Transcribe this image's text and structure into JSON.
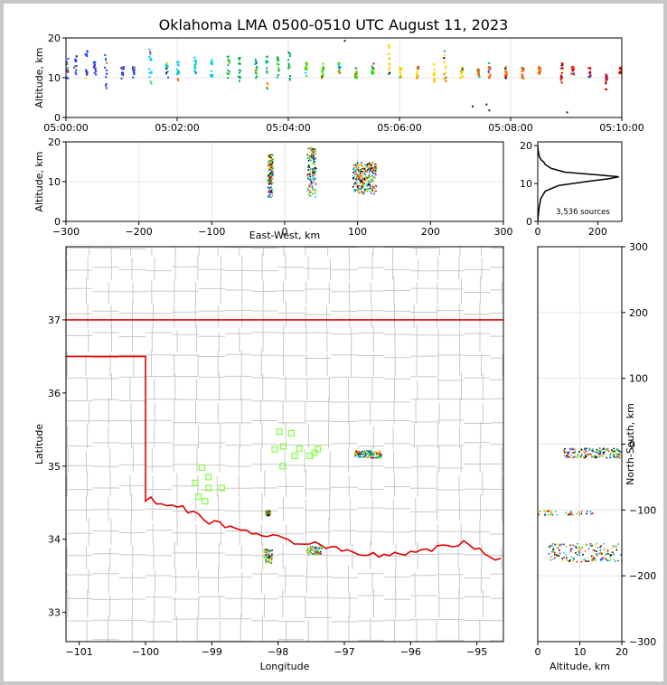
{
  "title": "Oklahoma LMA 0500-0510 UTC August 11, 2023",
  "colors": {
    "state_border": "#e00000",
    "county_lines": "#c8c8c8",
    "station_marker": "#80ff40",
    "grid": "#e6e6e6",
    "time_color_scale": [
      "#2040ff",
      "#00c8ff",
      "#00b060",
      "#40e000",
      "#ffd000",
      "#ff6000",
      "#e00000",
      "#000000"
    ]
  },
  "chart_data": [
    {
      "id": "time-altitude",
      "type": "scatter",
      "title": "",
      "xlabel": "",
      "ylabel": "Altitude, km",
      "x_ticks": [
        "05:00:00",
        "05:02:00",
        "05:04:00",
        "05:06:00",
        "05:08:00",
        "05:10:00"
      ],
      "xlim_minutes": [
        0,
        10
      ],
      "ylim": [
        0,
        20
      ],
      "y_ticks": [
        0,
        10,
        20
      ],
      "grid": true,
      "source_bursts": [
        {
          "t": 0.0,
          "z": [
            10,
            17
          ]
        },
        {
          "t": 0.15,
          "z": [
            11,
            16
          ]
        },
        {
          "t": 0.35,
          "z": [
            10,
            17
          ]
        },
        {
          "t": 0.5,
          "z": [
            11,
            15
          ]
        },
        {
          "t": 0.7,
          "z": [
            7,
            16
          ]
        },
        {
          "t": 1.0,
          "z": [
            10,
            13
          ]
        },
        {
          "t": 1.2,
          "z": [
            10,
            13
          ]
        },
        {
          "t": 1.5,
          "z": [
            8,
            18
          ]
        },
        {
          "t": 1.8,
          "z": [
            10,
            14
          ]
        },
        {
          "t": 2.0,
          "z": [
            9,
            15
          ]
        },
        {
          "t": 2.3,
          "z": [
            10,
            16
          ]
        },
        {
          "t": 2.6,
          "z": [
            10,
            15
          ]
        },
        {
          "t": 2.9,
          "z": [
            10,
            16
          ]
        },
        {
          "t": 3.1,
          "z": [
            9,
            16
          ]
        },
        {
          "t": 3.4,
          "z": [
            10,
            15
          ]
        },
        {
          "t": 3.6,
          "z": [
            7,
            17
          ]
        },
        {
          "t": 3.8,
          "z": [
            10,
            16
          ]
        },
        {
          "t": 4.0,
          "z": [
            8,
            17
          ]
        },
        {
          "t": 4.3,
          "z": [
            10,
            14
          ]
        },
        {
          "t": 4.6,
          "z": [
            10,
            14
          ]
        },
        {
          "t": 4.9,
          "z": [
            11,
            14
          ]
        },
        {
          "t": 5.2,
          "z": [
            10,
            13
          ]
        },
        {
          "t": 5.5,
          "z": [
            10,
            14
          ]
        },
        {
          "t": 5.8,
          "z": [
            10,
            19
          ]
        },
        {
          "t": 6.0,
          "z": [
            10,
            13
          ]
        },
        {
          "t": 6.3,
          "z": [
            10,
            13
          ]
        },
        {
          "t": 6.6,
          "z": [
            9,
            14
          ]
        },
        {
          "t": 6.8,
          "z": [
            9,
            17
          ]
        },
        {
          "t": 7.1,
          "z": [
            10,
            13
          ]
        },
        {
          "t": 7.4,
          "z": [
            10,
            13
          ]
        },
        {
          "t": 7.6,
          "z": [
            10,
            14
          ]
        },
        {
          "t": 7.9,
          "z": [
            10,
            13
          ]
        },
        {
          "t": 8.2,
          "z": [
            10,
            13
          ]
        },
        {
          "t": 8.5,
          "z": [
            11,
            13
          ]
        },
        {
          "t": 8.9,
          "z": [
            9,
            14
          ]
        },
        {
          "t": 9.1,
          "z": [
            11,
            13
          ]
        },
        {
          "t": 9.4,
          "z": [
            10,
            13
          ]
        },
        {
          "t": 9.7,
          "z": [
            7,
            11
          ]
        },
        {
          "t": 9.95,
          "z": [
            11,
            13
          ]
        }
      ],
      "isolated_sources": [
        {
          "t": 7.3,
          "z": 3
        },
        {
          "t": 7.6,
          "z": 2
        },
        {
          "t": 7.55,
          "z": 3.5
        },
        {
          "t": 9.0,
          "z": 1.5
        },
        {
          "t": 5.0,
          "z": 19.5
        }
      ]
    },
    {
      "id": "east-west-altitude",
      "type": "scatter",
      "xlabel": "East-West, km",
      "ylabel": "Altitude, km",
      "xlim": [
        -300,
        300
      ],
      "x_ticks": [
        -300,
        -200,
        -100,
        0,
        100,
        200,
        300
      ],
      "ylim": [
        0,
        20
      ],
      "y_ticks": [
        0,
        10,
        20
      ],
      "grid": true,
      "clusters": [
        {
          "x": [
            -24,
            -17
          ],
          "z": [
            6,
            17
          ]
        },
        {
          "x": [
            30,
            42
          ],
          "z": [
            6,
            19
          ]
        },
        {
          "x": [
            93,
            125
          ],
          "z": [
            7,
            15
          ]
        }
      ]
    },
    {
      "id": "altitude-histogram",
      "type": "line",
      "xlim": [
        0,
        280
      ],
      "x_ticks": [
        0,
        200
      ],
      "ylim": [
        0,
        21
      ],
      "y_ticks": [
        0,
        10,
        20
      ],
      "annotation": "3,536 sources",
      "profile": [
        {
          "count": 0,
          "z": 0
        },
        {
          "count": 2,
          "z": 2
        },
        {
          "count": 5,
          "z": 4
        },
        {
          "count": 10,
          "z": 6
        },
        {
          "count": 25,
          "z": 8
        },
        {
          "count": 70,
          "z": 9.5
        },
        {
          "count": 160,
          "z": 10.5
        },
        {
          "count": 240,
          "z": 11.3
        },
        {
          "count": 270,
          "z": 11.8
        },
        {
          "count": 200,
          "z": 12.3
        },
        {
          "count": 90,
          "z": 13
        },
        {
          "count": 45,
          "z": 14
        },
        {
          "count": 25,
          "z": 15
        },
        {
          "count": 20,
          "z": 15.7
        },
        {
          "count": 12,
          "z": 16.2
        },
        {
          "count": 6,
          "z": 17
        },
        {
          "count": 3,
          "z": 18
        },
        {
          "count": 1,
          "z": 19
        },
        {
          "count": 0,
          "z": 20
        }
      ]
    },
    {
      "id": "plan-view-map",
      "type": "scatter",
      "xlabel": "Longitude",
      "ylabel": "Latitude",
      "xlim": [
        -101.2,
        -94.6
      ],
      "x_ticks": [
        -101,
        -100,
        -99,
        -98,
        -97,
        -96,
        -95
      ],
      "ylim": [
        32.6,
        38.0
      ],
      "y_ticks": [
        33,
        34,
        35,
        36,
        37
      ],
      "stations": [
        {
          "lon": -99.15,
          "lat": 34.98
        },
        {
          "lon": -99.05,
          "lat": 34.85
        },
        {
          "lon": -99.25,
          "lat": 34.77
        },
        {
          "lon": -99.05,
          "lat": 34.7
        },
        {
          "lon": -99.2,
          "lat": 34.58
        },
        {
          "lon": -99.1,
          "lat": 34.52
        },
        {
          "lon": -98.85,
          "lat": 34.7
        },
        {
          "lon": -97.98,
          "lat": 35.47
        },
        {
          "lon": -97.8,
          "lat": 35.45
        },
        {
          "lon": -98.05,
          "lat": 35.23
        },
        {
          "lon": -97.92,
          "lat": 35.27
        },
        {
          "lon": -97.68,
          "lat": 35.24
        },
        {
          "lon": -97.4,
          "lat": 35.23
        },
        {
          "lon": -97.75,
          "lat": 35.14
        },
        {
          "lon": -97.52,
          "lat": 35.14
        },
        {
          "lon": -97.93,
          "lat": 35.0
        },
        {
          "lon": -97.45,
          "lat": 35.18
        }
      ],
      "source_clusters": [
        {
          "lon": [
            -96.85,
            -96.45
          ],
          "lat": [
            35.12,
            35.22
          ]
        },
        {
          "lon": [
            -98.2,
            -98.12
          ],
          "lat": [
            34.33,
            34.4
          ]
        },
        {
          "lon": [
            -98.22,
            -98.1
          ],
          "lat": [
            33.68,
            33.88
          ]
        },
        {
          "lon": [
            -97.58,
            -97.35
          ],
          "lat": [
            33.8,
            33.92
          ]
        }
      ]
    },
    {
      "id": "altitude-north-south",
      "type": "scatter",
      "xlabel": "Altitude, km",
      "ylabel": "North-South, km",
      "xlim": [
        0,
        20
      ],
      "x_ticks": [
        0,
        10,
        20
      ],
      "ylim": [
        -300,
        300
      ],
      "y_ticks": [
        -300,
        -200,
        -100,
        0,
        100,
        200,
        300
      ],
      "grid": true,
      "clusters": [
        {
          "z": [
            6,
            20
          ],
          "ns": [
            -20,
            -5
          ]
        },
        {
          "z": [
            0,
            13
          ],
          "ns": [
            -107,
            -100
          ]
        },
        {
          "z": [
            2,
            20
          ],
          "ns": [
            -178,
            -150
          ]
        }
      ]
    }
  ]
}
